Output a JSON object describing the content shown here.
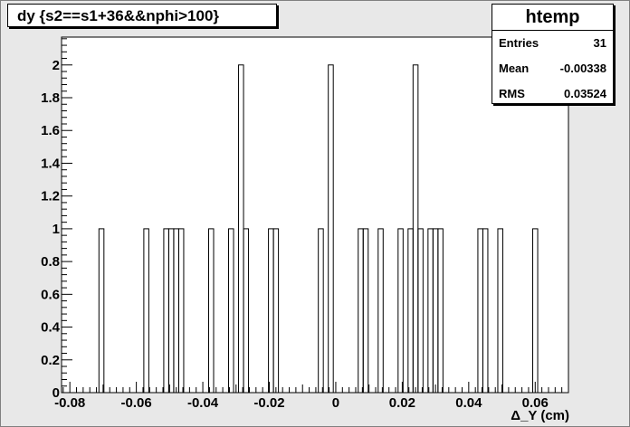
{
  "chart_data": {
    "type": "bar",
    "title": "dy {s2==s1+36&&nphi>100}",
    "xlabel": "Δ_Y (cm)",
    "ylabel": "",
    "xlim": [
      -0.0825,
      0.07
    ],
    "ylim": [
      0,
      2.17
    ],
    "bin_width": 0.0015,
    "x_ticks": [
      "-0.08",
      "-0.06",
      "-0.04",
      "-0.02",
      "0",
      "0.02",
      "0.04",
      "0.06"
    ],
    "x_tick_values": [
      -0.08,
      -0.06,
      -0.04,
      -0.02,
      0,
      0.02,
      0.04,
      0.06
    ],
    "y_ticks": [
      "0",
      "0.2",
      "0.4",
      "0.6",
      "0.8",
      "1",
      "1.2",
      "1.4",
      "1.6",
      "1.8",
      "2"
    ],
    "y_tick_values": [
      0,
      0.2,
      0.4,
      0.6,
      0.8,
      1,
      1.2,
      1.4,
      1.6,
      1.8,
      2
    ],
    "bins": [
      {
        "x": -0.0705,
        "y": 1
      },
      {
        "x": -0.057,
        "y": 1
      },
      {
        "x": -0.051,
        "y": 1
      },
      {
        "x": -0.0495,
        "y": 1
      },
      {
        "x": -0.048,
        "y": 1
      },
      {
        "x": -0.0465,
        "y": 1
      },
      {
        "x": -0.0375,
        "y": 1
      },
      {
        "x": -0.0315,
        "y": 1
      },
      {
        "x": -0.0285,
        "y": 2
      },
      {
        "x": -0.027,
        "y": 1
      },
      {
        "x": -0.0195,
        "y": 1
      },
      {
        "x": -0.018,
        "y": 1
      },
      {
        "x": -0.0045,
        "y": 1
      },
      {
        "x": -0.0015,
        "y": 2
      },
      {
        "x": 0.0075,
        "y": 1
      },
      {
        "x": 0.009,
        "y": 1
      },
      {
        "x": 0.0135,
        "y": 1
      },
      {
        "x": 0.0195,
        "y": 1
      },
      {
        "x": 0.0225,
        "y": 1
      },
      {
        "x": 0.024,
        "y": 2
      },
      {
        "x": 0.0255,
        "y": 1
      },
      {
        "x": 0.0285,
        "y": 1
      },
      {
        "x": 0.03,
        "y": 1
      },
      {
        "x": 0.0315,
        "y": 1
      },
      {
        "x": 0.0435,
        "y": 1
      },
      {
        "x": 0.045,
        "y": 1
      },
      {
        "x": 0.0495,
        "y": 1
      },
      {
        "x": 0.06,
        "y": 1
      }
    ]
  },
  "stats": {
    "name": "htemp",
    "entries_label": "Entries",
    "entries_value": "31",
    "mean_label": "Mean",
    "mean_value": "-0.00338",
    "rms_label": "RMS",
    "rms_value": "0.03524"
  },
  "colors": {
    "frame_background": "#e8e8e8",
    "plot_background": "#ffffff",
    "histogram_line": "#000000"
  }
}
